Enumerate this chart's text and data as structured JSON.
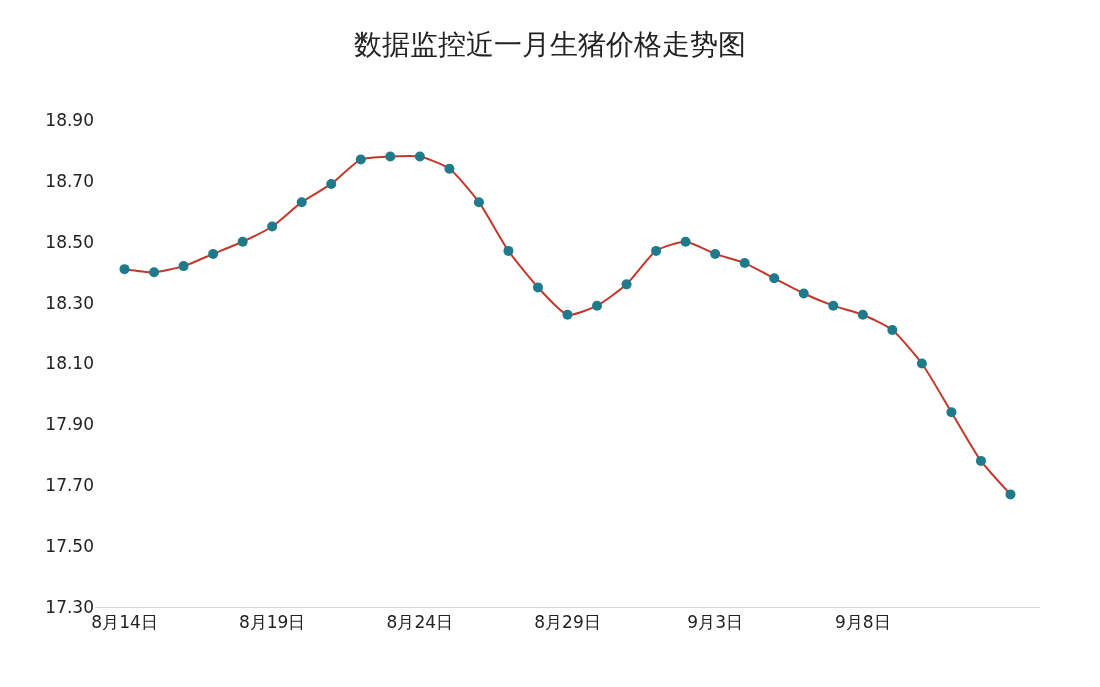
{
  "chart_data": {
    "type": "line",
    "title": "数据监控近一月生猪价格走势图",
    "x": [
      "--08-14",
      "--08-15",
      "--08-16",
      "--08-17",
      "--08-18",
      "--08-19",
      "--08-20",
      "--08-21",
      "--08-22",
      "--08-23",
      "--08-24",
      "--08-25",
      "--08-26",
      "--08-27",
      "--08-28",
      "--08-29",
      "--08-30",
      "--08-31",
      "--09-01",
      "--09-02",
      "--09-03",
      "--09-04",
      "--09-05",
      "--09-06",
      "--09-07",
      "--09-08",
      "--09-09",
      "--09-10",
      "--09-11",
      "--09-12",
      "--09-13"
    ],
    "series": [
      {
        "color": "#c0392b",
        "colors": [
          "#1f7a8c",
          "#1f7a8c",
          "#1f7a8c",
          "#1f7a8c",
          "#1f7a8c",
          "#1f7a8c",
          "#1f7a8c",
          "#1f7a8c",
          "#1f7a8c",
          "#1f7a8c",
          "#1f7a8c",
          "#1f7a8c",
          "#1f7a8c",
          "#1f7a8c",
          "#1f7a8c",
          "#1f7a8c",
          "#1f7a8c",
          "#1f7a8c",
          "#1f7a8c",
          "#1f7a8c",
          "#1f7a8c",
          "#1f7a8c",
          "#1f7a8c",
          "#1f7a8c",
          "#1f7a8c",
          "#1f7a8c",
          "#1f7a8c",
          "#1f7a8c",
          "#1f7a8c",
          "#1f7a8c",
          "#1f7a8c"
        ],
        "values": [
          18.41,
          18.4,
          18.42,
          18.46,
          18.5,
          18.55,
          18.63,
          18.69,
          18.77,
          18.78,
          18.78,
          18.74,
          18.63,
          18.47,
          18.35,
          18.26,
          18.29,
          18.36,
          18.47,
          18.5,
          18.46,
          18.43,
          18.38,
          18.33,
          18.29,
          18.26,
          18.21,
          18.1,
          17.94,
          17.78,
          17.67
        ]
      }
    ],
    "xlim": [
      "--08-13",
      "--09-14"
    ],
    "xticks": [
      {
        "value": "--08-14",
        "label": "8月14日"
      },
      {
        "value": "--08-19",
        "label": "8月19日"
      },
      {
        "value": "--08-24",
        "label": "8月24日"
      },
      {
        "value": "--08-29",
        "label": "8月29日"
      },
      {
        "value": "--09-03",
        "label": "9月3日"
      },
      {
        "value": "--09-08",
        "label": "9月8日"
      }
    ],
    "ylim": [
      17.3,
      18.9
    ],
    "yticks": [
      {
        "value": 17.3,
        "label": "17.30"
      },
      {
        "value": 17.5,
        "label": "17.50"
      },
      {
        "value": 17.7,
        "label": "17.70"
      },
      {
        "value": 17.9,
        "label": "17.90"
      },
      {
        "value": 18.1,
        "label": "18.10"
      },
      {
        "value": 18.3,
        "label": "18.30"
      },
      {
        "value": 18.5,
        "label": "18.50"
      },
      {
        "value": 18.7,
        "label": "18.70"
      },
      {
        "value": 18.9,
        "label": "18.90"
      }
    ],
    "marker": "circle",
    "line_style": "solid",
    "legend": false
  }
}
